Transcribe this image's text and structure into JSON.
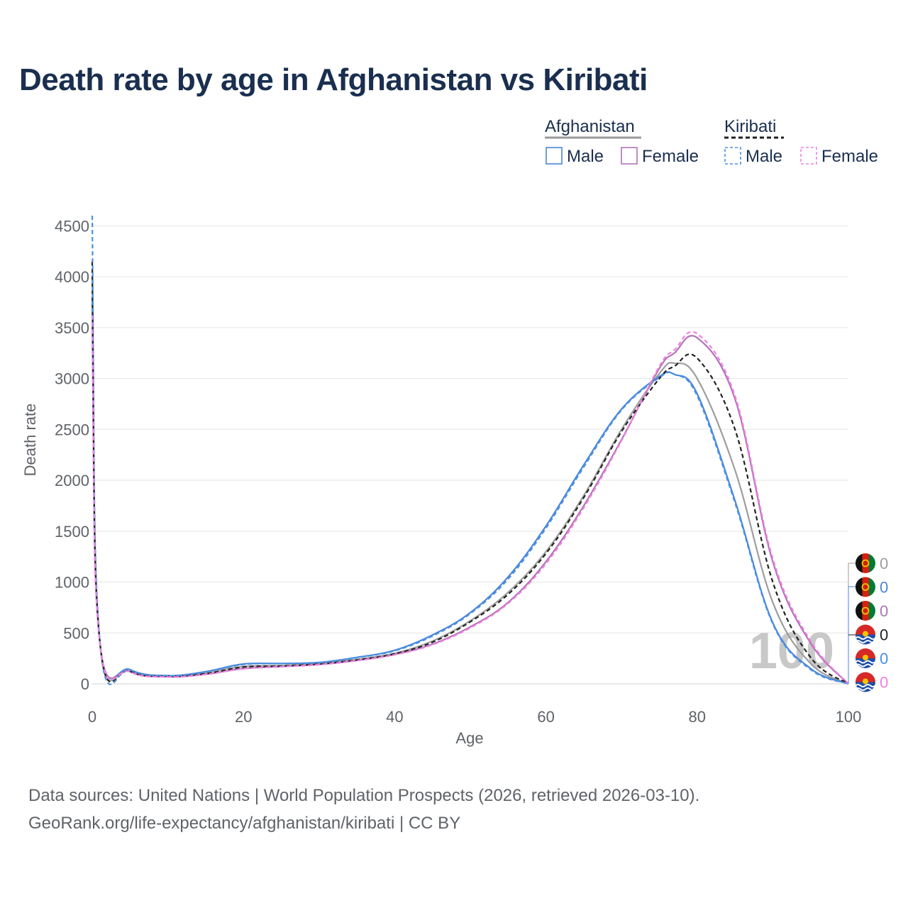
{
  "chart_data": {
    "type": "line",
    "title": "Death rate by age in Afghanistan vs Kiribati",
    "xlabel": "Age",
    "ylabel": "Death rate",
    "xlim": [
      0,
      100
    ],
    "ylim": [
      0,
      4600
    ],
    "x_ticks": [
      "0",
      "20",
      "40",
      "60",
      "80",
      "100"
    ],
    "x_tick_values": [
      0,
      20,
      40,
      60,
      80,
      100
    ],
    "y_ticks": [
      "0",
      "500",
      "1000",
      "1500",
      "2000",
      "2500",
      "3000",
      "3500",
      "4000",
      "4500"
    ],
    "y_tick_values": [
      0,
      500,
      1000,
      1500,
      2000,
      2500,
      3000,
      3500,
      4000,
      4500
    ],
    "grid": true,
    "legend": {
      "groups": [
        {
          "name": "Afghanistan",
          "items": [
            "Male",
            "Female"
          ]
        },
        {
          "name": "Kiribati",
          "items": [
            "Male",
            "Female"
          ]
        }
      ],
      "placement": "top-right"
    },
    "watermark": "100",
    "x": [
      0,
      1,
      5,
      10,
      15,
      20,
      25,
      30,
      35,
      40,
      45,
      50,
      55,
      60,
      65,
      70,
      75,
      77,
      80,
      85,
      90,
      95,
      100
    ],
    "series": [
      {
        "name": "Afghanistan",
        "style": "solid",
        "color": "#9e9e9e",
        "values": [
          4000,
          420,
          130,
          80,
          110,
          170,
          180,
          200,
          240,
          300,
          420,
          620,
          900,
          1300,
          1850,
          2500,
          3050,
          3150,
          3000,
          2100,
          800,
          200,
          0
        ]
      },
      {
        "name": "Afghanistan Male",
        "style": "solid",
        "color": "#4a86d9",
        "values": [
          3800,
          420,
          140,
          80,
          120,
          195,
          200,
          210,
          260,
          330,
          480,
          700,
          1050,
          1550,
          2150,
          2700,
          3020,
          3040,
          2850,
          1800,
          600,
          150,
          0
        ]
      },
      {
        "name": "Afghanistan Female",
        "style": "solid",
        "color": "#b073b8",
        "values": [
          3550,
          410,
          120,
          70,
          95,
          150,
          170,
          190,
          230,
          290,
          390,
          560,
          800,
          1200,
          1750,
          2400,
          3100,
          3250,
          3400,
          2800,
          1200,
          400,
          0
        ]
      },
      {
        "name": "Kiribati",
        "style": "dashed",
        "color": "#222222",
        "values": [
          4150,
          420,
          125,
          75,
          100,
          165,
          175,
          195,
          235,
          295,
          410,
          610,
          880,
          1280,
          1830,
          2480,
          3000,
          3120,
          3200,
          2500,
          1000,
          260,
          0
        ]
      },
      {
        "name": "Kiribati Male",
        "style": "dashed",
        "color": "#4a90e2",
        "values": [
          4600,
          425,
          140,
          80,
          118,
          190,
          200,
          208,
          258,
          325,
          470,
          690,
          1030,
          1530,
          2130,
          2690,
          3010,
          3040,
          2830,
          1780,
          590,
          140,
          0
        ]
      },
      {
        "name": "Kiribati Female",
        "style": "dashed",
        "color": "#f080e0",
        "values": [
          3620,
          405,
          118,
          68,
          92,
          148,
          168,
          188,
          228,
          285,
          385,
          550,
          790,
          1180,
          1730,
          2390,
          3120,
          3280,
          3440,
          2830,
          1230,
          420,
          0
        ]
      }
    ],
    "end_labels": [
      {
        "value": "0",
        "country": "Afghanistan",
        "color": "#9e9e9e"
      },
      {
        "value": "0",
        "country": "Afghanistan",
        "color": "#4a86d9"
      },
      {
        "value": "0",
        "country": "Afghanistan",
        "color": "#b073b8"
      },
      {
        "value": "0",
        "country": "Kiribati",
        "color": "#222222"
      },
      {
        "value": "0",
        "country": "Kiribati",
        "color": "#4a90e2"
      },
      {
        "value": "0",
        "country": "Kiribati",
        "color": "#f080e0"
      }
    ]
  },
  "footer": {
    "source": "Data sources: United Nations | World Population Prospects (2026, retrieved 2026-03-10).",
    "credit": "GeoRank.org/life-expectancy/afghanistan/kiribati | CC BY"
  }
}
